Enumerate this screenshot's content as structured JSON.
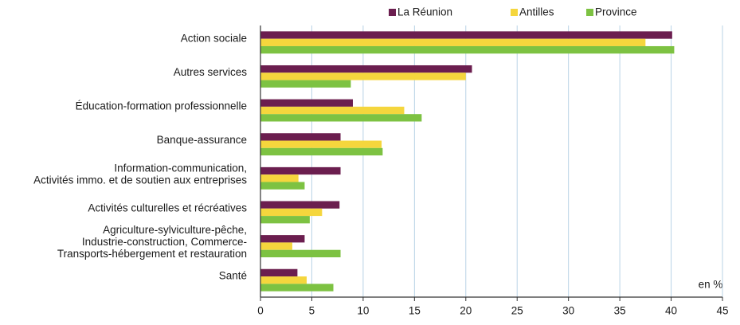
{
  "chart_data": {
    "type": "bar",
    "orientation": "horizontal",
    "categories": [
      "Action sociale",
      "Autres services",
      "Éducation-formation professionnelle",
      "Banque-assurance",
      "Information-communication,\nActivités immo. et de soutien aux entreprises",
      "Activités culturelles et récréatives",
      "Agriculture-sylviculture-pêche,\nIndustrie-construction, Commerce-\nTransports-hébergement et restauration",
      "Santé"
    ],
    "series": [
      {
        "name": "La Réunion",
        "color": "#6b1e4f",
        "values": [
          40.1,
          20.6,
          9.0,
          7.8,
          7.8,
          7.7,
          4.3,
          3.6
        ]
      },
      {
        "name": "Antilles",
        "color": "#f5d63d",
        "values": [
          37.5,
          20.0,
          14.0,
          11.8,
          3.7,
          6.0,
          3.1,
          4.5
        ]
      },
      {
        "name": "Province",
        "color": "#7dc242",
        "values": [
          40.3,
          8.8,
          15.7,
          11.9,
          4.3,
          4.8,
          7.8,
          7.1
        ]
      }
    ],
    "xlim": [
      0,
      45
    ],
    "xticks": [
      0,
      5,
      10,
      15,
      20,
      25,
      30,
      35,
      40,
      45
    ],
    "x_unit_label": "en %",
    "grid": true,
    "legend": "top"
  }
}
